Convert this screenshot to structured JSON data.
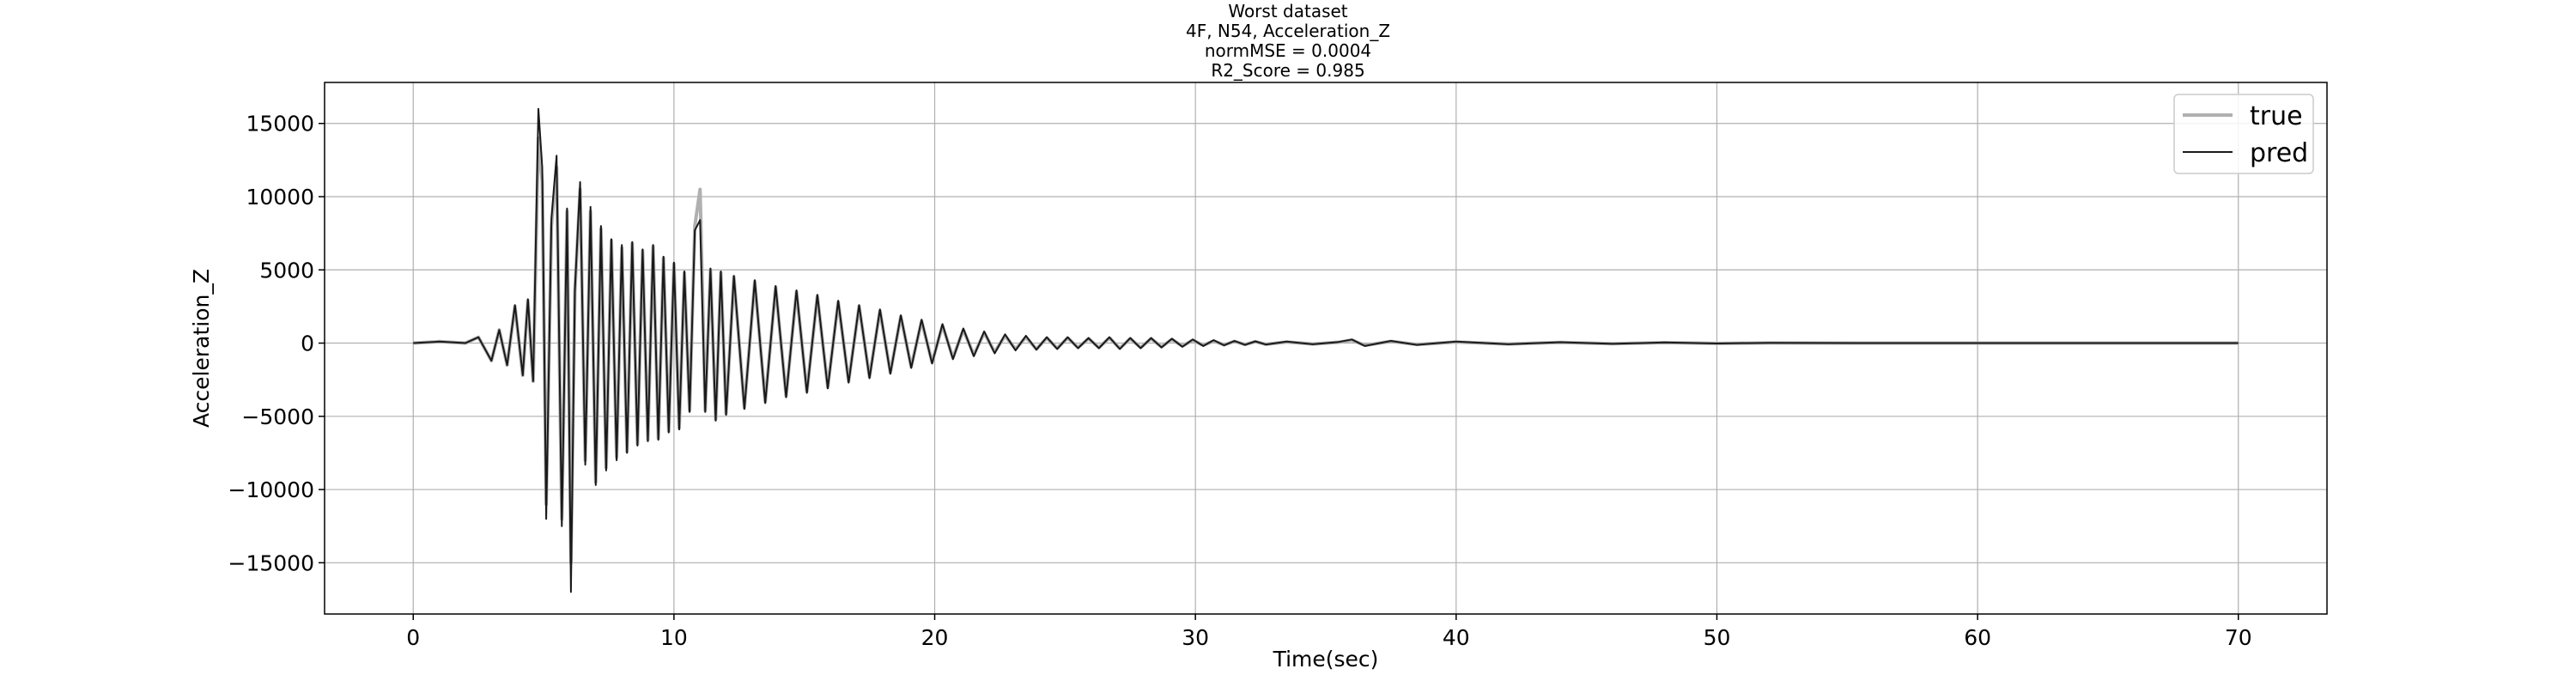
{
  "chart_data": {
    "type": "line",
    "title_lines": [
      "Worst dataset",
      "4F, N54, Acceleration_Z",
      "normMSE = 0.0004",
      "R2_Score = 0.985"
    ],
    "xlabel": "Time(sec)",
    "ylabel": "Acceleration_Z",
    "xlim": [
      -3.4,
      73.4
    ],
    "ylim": [
      -18500,
      17800
    ],
    "xticks": [
      0,
      10,
      20,
      30,
      40,
      50,
      60,
      70
    ],
    "yticks": [
      -15000,
      -10000,
      -5000,
      0,
      5000,
      10000,
      15000
    ],
    "xtick_labels": [
      "0",
      "10",
      "20",
      "30",
      "40",
      "50",
      "60",
      "70"
    ],
    "ytick_labels": [
      "−15000",
      "−10000",
      "−5000",
      "0",
      "5000",
      "10000",
      "15000"
    ],
    "grid": true,
    "legend_position": "top-right",
    "series": [
      {
        "name": "true",
        "color": "#b0b0b0",
        "x": [
          0,
          1,
          2,
          2.5,
          3.0,
          3.3,
          3.6,
          3.9,
          4.2,
          4.4,
          4.6,
          4.8,
          4.95,
          5.1,
          5.3,
          5.5,
          5.7,
          5.9,
          6.05,
          6.2,
          6.4,
          6.6,
          6.8,
          7.0,
          7.2,
          7.4,
          7.6,
          7.8,
          8.0,
          8.2,
          8.4,
          8.6,
          8.8,
          9.0,
          9.2,
          9.4,
          9.6,
          9.8,
          10.0,
          10.2,
          10.4,
          10.6,
          10.8,
          11.0,
          11.2,
          11.4,
          11.6,
          11.8,
          12.0,
          12.3,
          12.7,
          13.1,
          13.5,
          13.9,
          14.3,
          14.7,
          15.1,
          15.5,
          15.9,
          16.3,
          16.7,
          17.1,
          17.5,
          17.9,
          18.3,
          18.7,
          19.1,
          19.5,
          19.9,
          20.3,
          20.7,
          21.1,
          21.5,
          21.9,
          22.3,
          22.7,
          23.1,
          23.5,
          23.9,
          24.3,
          24.7,
          25.1,
          25.5,
          25.9,
          26.3,
          26.7,
          27.1,
          27.5,
          27.9,
          28.3,
          28.7,
          29.1,
          29.5,
          29.9,
          30.3,
          30.7,
          31.1,
          31.5,
          31.9,
          32.3,
          32.7,
          33.5,
          34.5,
          35.5,
          36.0,
          36.5,
          37.5,
          38.5,
          40,
          42,
          44,
          46,
          48,
          50,
          52,
          54,
          56,
          60,
          64,
          70
        ],
        "y": [
          0,
          100,
          0,
          400,
          -1200,
          900,
          -1500,
          2500,
          -2200,
          2900,
          -2600,
          14000,
          11000,
          -11000,
          8000,
          12000,
          -12000,
          9000,
          -15000,
          3500,
          10500,
          -8000,
          9000,
          -9500,
          7800,
          -8500,
          7000,
          -7800,
          6500,
          -7400,
          6800,
          -6900,
          6300,
          -6600,
          6600,
          -6500,
          5800,
          -6000,
          5400,
          -5800,
          4800,
          -4600,
          8000,
          10500,
          -4600,
          5000,
          -5200,
          4800,
          -4800,
          4500,
          -4400,
          4200,
          -4000,
          3800,
          -3600,
          3500,
          -3300,
          3200,
          -3000,
          2800,
          -2600,
          2500,
          -2300,
          2200,
          -2000,
          1800,
          -1600,
          1500,
          -1300,
          1200,
          -1000,
          900,
          -800,
          700,
          -600,
          500,
          -400,
          400,
          -400,
          350,
          -350,
          350,
          -300,
          300,
          -300,
          350,
          -350,
          300,
          -300,
          300,
          -250,
          250,
          -200,
          200,
          -150,
          150,
          -120,
          120,
          -100,
          100,
          -80,
          80,
          -60,
          60,
          200,
          -150,
          120,
          -100,
          80,
          -60,
          50,
          -40,
          30,
          -20,
          10,
          0,
          0,
          0,
          0,
          0
        ]
      },
      {
        "name": "pred",
        "color": "#1a1a1a",
        "x": [
          0,
          1,
          2,
          2.5,
          3.0,
          3.3,
          3.6,
          3.9,
          4.2,
          4.4,
          4.6,
          4.8,
          4.95,
          5.1,
          5.3,
          5.5,
          5.7,
          5.9,
          6.05,
          6.2,
          6.4,
          6.6,
          6.8,
          7.0,
          7.2,
          7.4,
          7.6,
          7.8,
          8.0,
          8.2,
          8.4,
          8.6,
          8.8,
          9.0,
          9.2,
          9.4,
          9.6,
          9.8,
          10.0,
          10.2,
          10.4,
          10.6,
          10.8,
          11.0,
          11.2,
          11.4,
          11.6,
          11.8,
          12.0,
          12.3,
          12.7,
          13.1,
          13.5,
          13.9,
          14.3,
          14.7,
          15.1,
          15.5,
          15.9,
          16.3,
          16.7,
          17.1,
          17.5,
          17.9,
          18.3,
          18.7,
          19.1,
          19.5,
          19.9,
          20.3,
          20.7,
          21.1,
          21.5,
          21.9,
          22.3,
          22.7,
          23.1,
          23.5,
          23.9,
          24.3,
          24.7,
          25.1,
          25.5,
          25.9,
          26.3,
          26.7,
          27.1,
          27.5,
          27.9,
          28.3,
          28.7,
          29.1,
          29.5,
          29.9,
          30.3,
          30.7,
          31.1,
          31.5,
          31.9,
          32.3,
          32.7,
          33.5,
          34.5,
          35.5,
          36.0,
          36.5,
          37.5,
          38.5,
          40,
          42,
          44,
          46,
          48,
          50,
          52,
          54,
          56,
          60,
          64,
          70
        ],
        "y": [
          0,
          100,
          0,
          400,
          -1200,
          900,
          -1500,
          2600,
          -2200,
          3000,
          -2600,
          16000,
          12000,
          -12000,
          8500,
          12800,
          -12500,
          9200,
          -17000,
          3600,
          11000,
          -8300,
          9300,
          -9700,
          8000,
          -8700,
          7100,
          -8000,
          6700,
          -7500,
          6900,
          -7000,
          6400,
          -6700,
          6700,
          -6600,
          5900,
          -6100,
          5500,
          -5900,
          4900,
          -4700,
          7700,
          8400,
          -4700,
          5100,
          -5300,
          4900,
          -4900,
          4600,
          -4500,
          4300,
          -4100,
          3900,
          -3700,
          3600,
          -3400,
          3300,
          -3100,
          2900,
          -2700,
          2600,
          -2400,
          2300,
          -2100,
          1900,
          -1700,
          1600,
          -1400,
          1300,
          -1100,
          1000,
          -900,
          800,
          -700,
          600,
          -500,
          500,
          -450,
          400,
          -400,
          400,
          -350,
          350,
          -350,
          400,
          -400,
          350,
          -350,
          350,
          -300,
          300,
          -250,
          250,
          -200,
          200,
          -150,
          150,
          -120,
          120,
          -100,
          100,
          -80,
          80,
          250,
          -200,
          150,
          -120,
          100,
          -80,
          60,
          -50,
          40,
          -30,
          20,
          10,
          0,
          0,
          0,
          0
        ]
      }
    ]
  }
}
